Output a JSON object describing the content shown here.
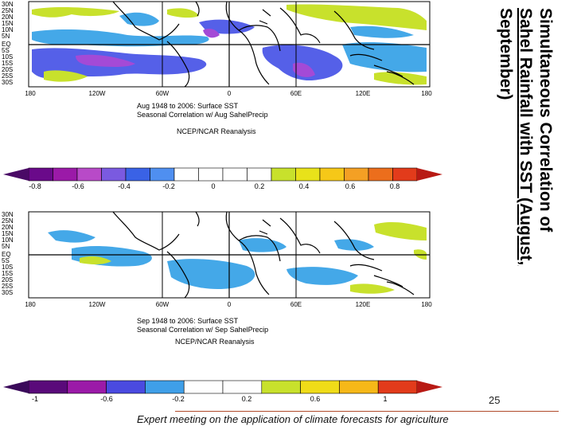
{
  "title": {
    "line1": "Simultaneous Correlation of",
    "line2": "Sahel Rainfall with SST (August,",
    "line3": "September)"
  },
  "slide_number": "25",
  "footer": "Expert meeting on the application of climate forecasts for agriculture",
  "map_top": {
    "lat_labels": [
      "30N",
      "25N",
      "20N",
      "15N",
      "10N",
      "5N",
      "EQ",
      "5S",
      "10S",
      "15S",
      "20S",
      "25S",
      "30S"
    ],
    "lon_labels": [
      "180",
      "120W",
      "60W",
      "0",
      "60E",
      "120E",
      "180"
    ],
    "caption_line1": "Aug 1948 to 2006: Surface SST",
    "caption_line2": "Seasonal Correlation w/ Aug SahelPrecip",
    "caption_line3": "NCEP/NCAR Reanalysis"
  },
  "map_bottom": {
    "lat_labels": [
      "30N",
      "25N",
      "20N",
      "15N",
      "10N",
      "5N",
      "EQ",
      "5S",
      "10S",
      "15S",
      "20S",
      "25S",
      "30S"
    ],
    "lon_labels": [
      "180",
      "120W",
      "60W",
      "0",
      "60E",
      "120E",
      "180"
    ],
    "caption_line1": "Sep 1948 to 2006: Surface SST",
    "caption_line2": "Seasonal Correlation w/ Sep SahelPrecip",
    "caption_line3": "NCEP/NCAR Reanalysis"
  },
  "colorbar_top": {
    "labels": [
      "-0.8",
      "-0.6",
      "-0.4",
      "-0.2",
      "0",
      "0.2",
      "0.4",
      "0.6",
      "0.8"
    ],
    "colors": [
      "#6a0a8a",
      "#9b1aa8",
      "#b84ac8",
      "#7a5ae0",
      "#3a62e6",
      "#4f8ff0",
      "#ffffff",
      "#ffffff",
      "#ffffff",
      "#ffffff",
      "#c8e12c",
      "#e8e21a",
      "#f6c818",
      "#f4a024",
      "#ec6e1c",
      "#e23b1b"
    ]
  },
  "colorbar_bottom": {
    "labels": [
      "-1",
      "-0.6",
      "-0.2",
      "0.2",
      "0.6",
      "1"
    ],
    "colors": [
      "#5a0a7a",
      "#9b1aa8",
      "#4a4ae0",
      "#3f9fe8",
      "#ffffff",
      "#ffffff",
      "#c8e12c",
      "#f0dc18",
      "#f6b818",
      "#e23b1b"
    ]
  },
  "colors": {
    "land_outline": "#000000",
    "positive": "#c8e12c",
    "negative_light": "#44a8e8",
    "negative_strong": "#5560e8",
    "negative_deep": "#a44ad6",
    "footer_rule": "#b04a2a"
  }
}
